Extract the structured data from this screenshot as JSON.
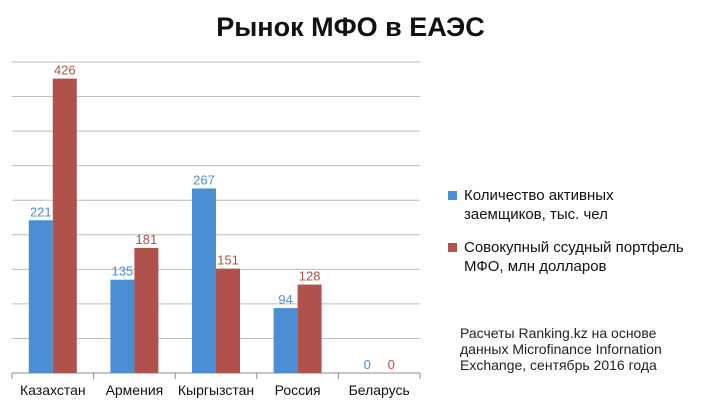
{
  "title": "Рынок МФО в ЕАЭС",
  "note": "Расчеты Ranking.kz на основе данных Microfinance Infornation Exchange, сентябрь 2016 года",
  "chart_data": {
    "type": "bar",
    "title": "Рынок МФО в ЕАЭС",
    "categories": [
      "Казахстан",
      "Армения",
      "Кыргызстан",
      "Россия",
      "Беларусь"
    ],
    "series": [
      {
        "name": "Количество активных заемщиков, тыс. чел",
        "values": [
          221,
          135,
          267,
          94,
          0
        ],
        "color": "#4a8fd4"
      },
      {
        "name": "Совокупный ссудный портфель МФО, млн долларов",
        "values": [
          426,
          181,
          151,
          128,
          0
        ],
        "color": "#b0514b"
      }
    ],
    "ylim": [
      0,
      450
    ],
    "grid": true,
    "legend_position": "right"
  }
}
